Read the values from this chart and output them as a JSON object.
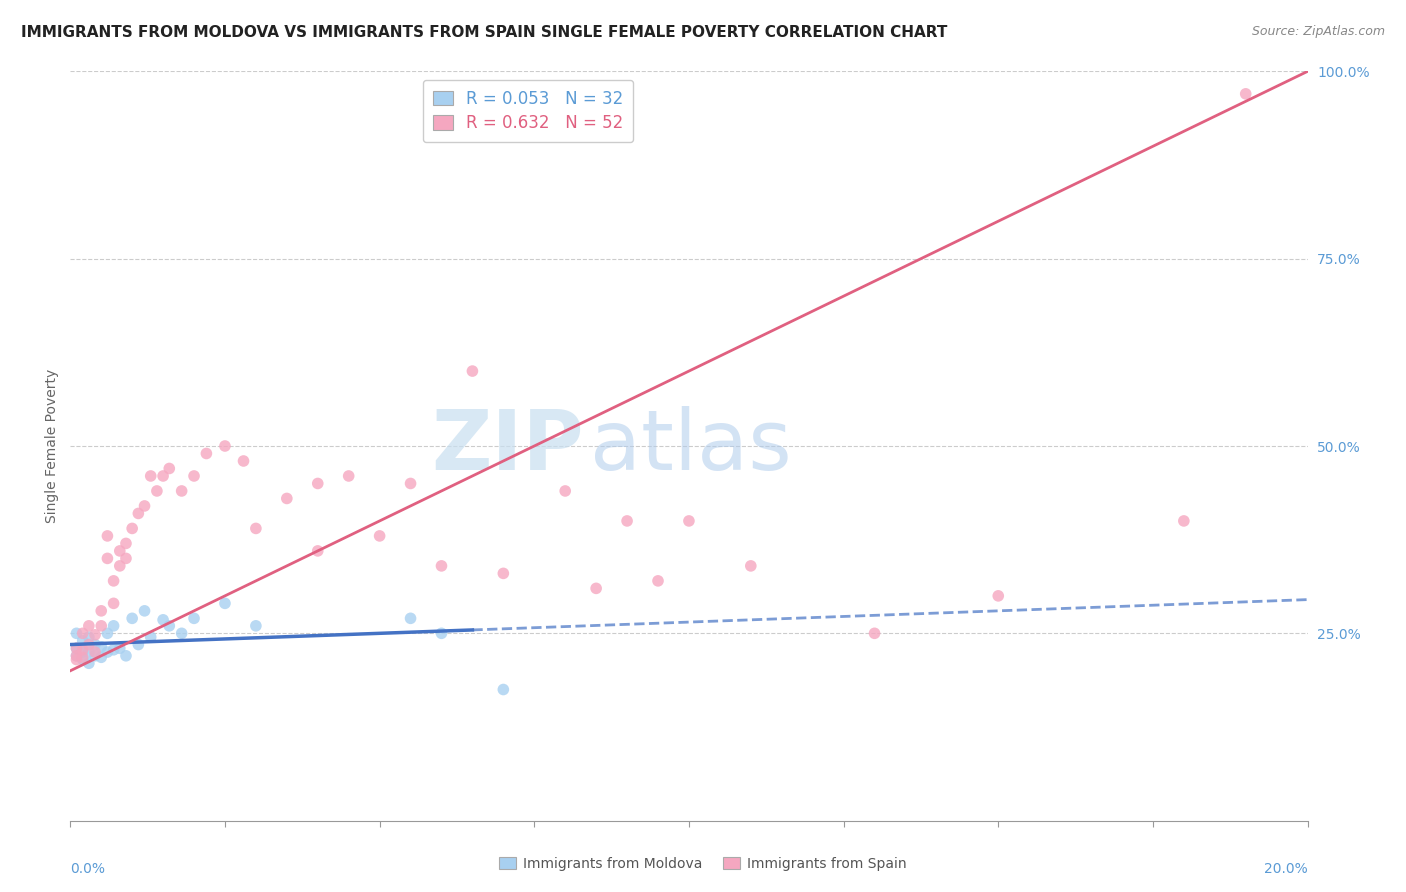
{
  "title": "IMMIGRANTS FROM MOLDOVA VS IMMIGRANTS FROM SPAIN SINGLE FEMALE POVERTY CORRELATION CHART",
  "source": "Source: ZipAtlas.com",
  "ylabel": "Single Female Poverty",
  "legend1_text": "R = 0.053   N = 32",
  "legend2_text": "R = 0.632   N = 52",
  "moldova_color": "#a8d0f0",
  "spain_color": "#f5a7c0",
  "moldova_line_color": "#4472c4",
  "spain_line_color": "#e06080",
  "watermark_zip": "ZIP",
  "watermark_atlas": "atlas",
  "xlim": [
    0.0,
    0.2
  ],
  "ylim": [
    0.0,
    1.0
  ],
  "moldova_x": [
    0.001,
    0.001,
    0.001,
    0.002,
    0.002,
    0.002,
    0.003,
    0.003,
    0.003,
    0.004,
    0.004,
    0.005,
    0.005,
    0.006,
    0.006,
    0.007,
    0.007,
    0.008,
    0.009,
    0.01,
    0.011,
    0.012,
    0.013,
    0.015,
    0.016,
    0.018,
    0.02,
    0.025,
    0.03,
    0.055,
    0.06,
    0.07
  ],
  "moldova_y": [
    0.22,
    0.23,
    0.25,
    0.215,
    0.225,
    0.24,
    0.21,
    0.225,
    0.245,
    0.22,
    0.235,
    0.218,
    0.232,
    0.225,
    0.25,
    0.228,
    0.26,
    0.23,
    0.22,
    0.27,
    0.235,
    0.28,
    0.245,
    0.268,
    0.26,
    0.25,
    0.27,
    0.29,
    0.26,
    0.27,
    0.25,
    0.175
  ],
  "spain_x": [
    0.001,
    0.001,
    0.001,
    0.002,
    0.002,
    0.002,
    0.003,
    0.003,
    0.004,
    0.004,
    0.005,
    0.005,
    0.006,
    0.006,
    0.007,
    0.007,
    0.008,
    0.008,
    0.009,
    0.009,
    0.01,
    0.011,
    0.012,
    0.013,
    0.014,
    0.015,
    0.016,
    0.018,
    0.02,
    0.022,
    0.025,
    0.028,
    0.03,
    0.035,
    0.04,
    0.045,
    0.055,
    0.065,
    0.08,
    0.09,
    0.11,
    0.13,
    0.04,
    0.05,
    0.06,
    0.07,
    0.085,
    0.095,
    0.1,
    0.15,
    0.18,
    0.19
  ],
  "spain_y": [
    0.22,
    0.23,
    0.215,
    0.218,
    0.228,
    0.25,
    0.235,
    0.26,
    0.225,
    0.248,
    0.26,
    0.28,
    0.35,
    0.38,
    0.32,
    0.29,
    0.36,
    0.34,
    0.37,
    0.35,
    0.39,
    0.41,
    0.42,
    0.46,
    0.44,
    0.46,
    0.47,
    0.44,
    0.46,
    0.49,
    0.5,
    0.48,
    0.39,
    0.43,
    0.45,
    0.46,
    0.45,
    0.6,
    0.44,
    0.4,
    0.34,
    0.25,
    0.36,
    0.38,
    0.34,
    0.33,
    0.31,
    0.32,
    0.4,
    0.3,
    0.4,
    0.97
  ],
  "title_fontsize": 11,
  "source_fontsize": 9,
  "axis_label_fontsize": 10,
  "tick_fontsize": 10,
  "legend_fontsize": 12
}
